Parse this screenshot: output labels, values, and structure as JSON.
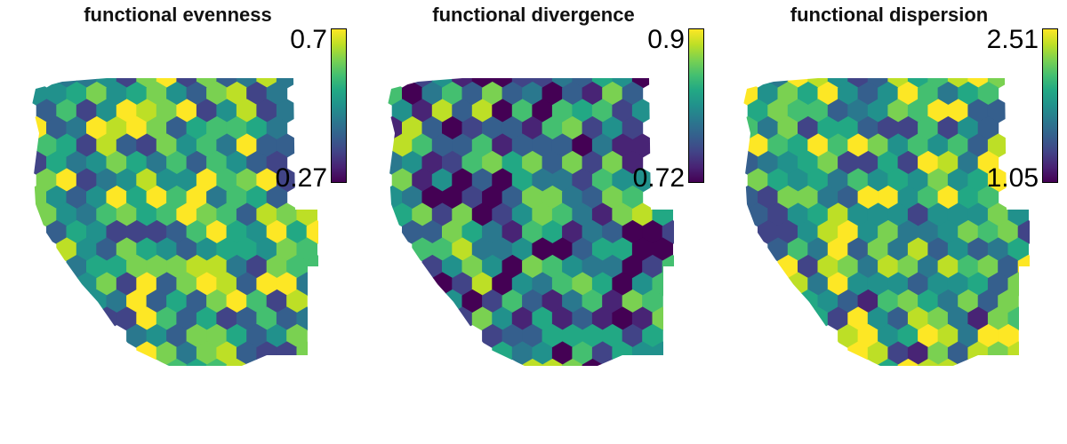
{
  "panels": [
    {
      "title": "functional evenness",
      "legend": {
        "max": "0.7",
        "min": "0.27"
      },
      "seed": 11,
      "palette_bias": 0.62
    },
    {
      "title": "functional divergence",
      "legend": {
        "max": "0.9",
        "min": "0.72"
      },
      "seed": 37,
      "palette_bias": 0.42
    },
    {
      "title": "functional dispersion",
      "legend": {
        "max": "2.51",
        "min": "1.05"
      },
      "seed": 73,
      "palette_bias": 0.6
    }
  ],
  "colors": {
    "viridis": [
      "#440154",
      "#482475",
      "#414487",
      "#355f8d",
      "#2a788e",
      "#21918c",
      "#22a884",
      "#44bf70",
      "#7ad151",
      "#bddf26",
      "#fde725"
    ]
  }
}
